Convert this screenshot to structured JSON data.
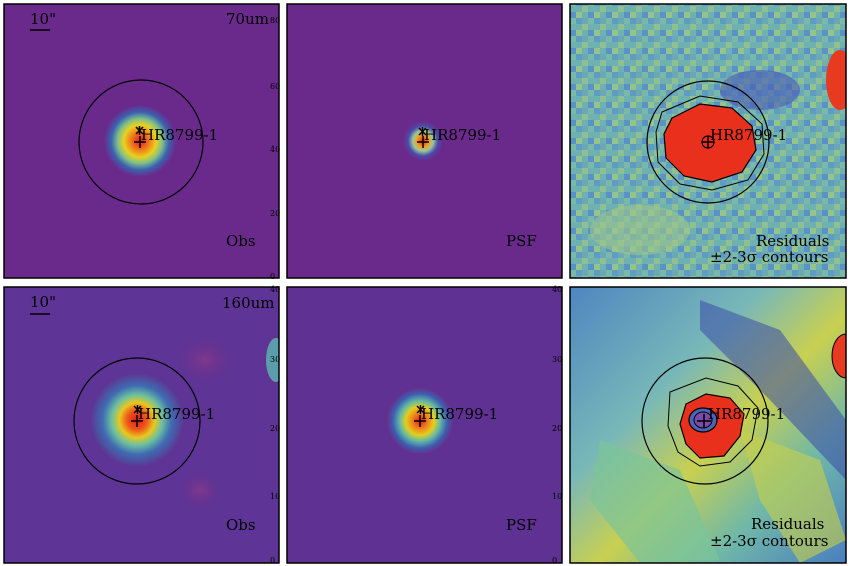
{
  "figure": {
    "rows": [
      {
        "band": "70um",
        "scale_bar": "10\"",
        "panels": [
          {
            "kind": "obs",
            "label": "Obs",
            "right_ticks": [
              "80",
              "60",
              "40",
              "20",
              "0"
            ]
          },
          {
            "kind": "psf",
            "label": "PSF",
            "right_ticks": [
              "80",
              "60",
              "40",
              "20",
              "0"
            ]
          },
          {
            "kind": "residual",
            "label_line1": "Residuals",
            "label_line2": "±2-3σ contours"
          }
        ]
      },
      {
        "band": "160um",
        "scale_bar": "10\"",
        "panels": [
          {
            "kind": "obs",
            "label": "Obs",
            "right_ticks": [
              "40",
              "30",
              "20",
              "10",
              "0"
            ]
          },
          {
            "kind": "psf",
            "label": "PSF",
            "right_ticks": [
              "40",
              "30",
              "20",
              "10",
              "0"
            ]
          },
          {
            "kind": "residual",
            "label_line1": "Residuals",
            "label_line2": "±2-3σ contours"
          }
        ]
      }
    ],
    "source_label": "HR8799-1",
    "colors": {
      "background_purple": "#6a2a8c",
      "frame": "#000000",
      "peak": "#e8201a"
    }
  }
}
